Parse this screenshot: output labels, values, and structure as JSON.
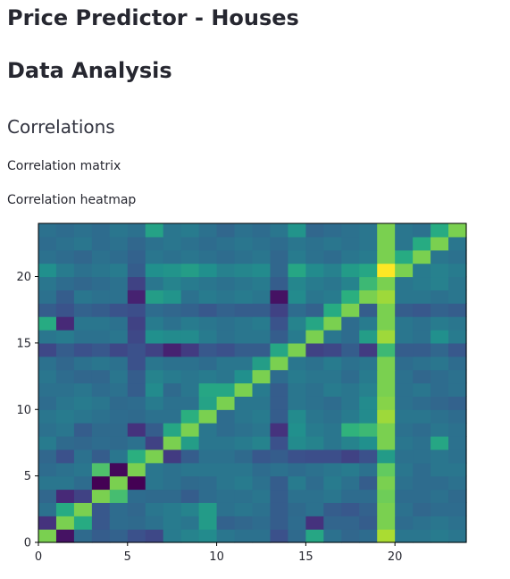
{
  "header": {
    "title": "Price Predictor - Houses"
  },
  "section": {
    "title": "Data Analysis"
  },
  "subsection": {
    "title": "Correlations"
  },
  "labels": {
    "matrix": "Correlation matrix",
    "heatmap": "Correlation heatmap"
  },
  "chart_data": {
    "type": "heatmap",
    "colormap": "viridis",
    "grid": false,
    "rows": 24,
    "cols": 24,
    "xlim": [
      0,
      24
    ],
    "ylim": [
      0,
      24
    ],
    "xticks": [
      0,
      5,
      10,
      15,
      20
    ],
    "yticks": [
      0,
      5,
      10,
      15,
      20
    ],
    "diagonal_value": 0.8,
    "values": [
      [
        0.8,
        0.05,
        0.35,
        0.3,
        0.32,
        0.25,
        0.22,
        0.42,
        0.45,
        0.48,
        0.4,
        0.38,
        0.38,
        0.25,
        0.35,
        0.6,
        0.38,
        0.34,
        0.36,
        0.88,
        0.4,
        0.4,
        0.42,
        0.4
      ],
      [
        0.15,
        0.8,
        0.62,
        0.28,
        0.36,
        0.35,
        0.38,
        0.42,
        0.4,
        0.55,
        0.32,
        0.34,
        0.36,
        0.3,
        0.36,
        0.15,
        0.33,
        0.33,
        0.3,
        0.8,
        0.36,
        0.38,
        0.4,
        0.38
      ],
      [
        0.38,
        0.62,
        0.8,
        0.28,
        0.36,
        0.34,
        0.4,
        0.42,
        0.45,
        0.55,
        0.38,
        0.4,
        0.38,
        0.3,
        0.35,
        0.38,
        0.3,
        0.28,
        0.32,
        0.8,
        0.38,
        0.34,
        0.36,
        0.36
      ],
      [
        0.34,
        0.12,
        0.2,
        0.8,
        0.7,
        0.36,
        0.35,
        0.35,
        0.3,
        0.36,
        0.38,
        0.38,
        0.4,
        0.3,
        0.38,
        0.38,
        0.4,
        0.36,
        0.36,
        0.78,
        0.36,
        0.36,
        0.38,
        0.35
      ],
      [
        0.4,
        0.4,
        0.36,
        0.0,
        0.8,
        0.0,
        0.4,
        0.38,
        0.35,
        0.36,
        0.4,
        0.42,
        0.38,
        0.3,
        0.42,
        0.36,
        0.42,
        0.38,
        0.3,
        0.8,
        0.38,
        0.36,
        0.36,
        0.38
      ],
      [
        0.36,
        0.38,
        0.4,
        0.72,
        0.02,
        0.8,
        0.4,
        0.38,
        0.4,
        0.4,
        0.4,
        0.4,
        0.36,
        0.38,
        0.36,
        0.38,
        0.4,
        0.42,
        0.38,
        0.76,
        0.4,
        0.36,
        0.4,
        0.4
      ],
      [
        0.34,
        0.25,
        0.38,
        0.3,
        0.4,
        0.64,
        0.8,
        0.18,
        0.3,
        0.38,
        0.38,
        0.35,
        0.28,
        0.3,
        0.25,
        0.24,
        0.24,
        0.2,
        0.25,
        0.55,
        0.38,
        0.38,
        0.4,
        0.38
      ],
      [
        0.42,
        0.35,
        0.34,
        0.36,
        0.35,
        0.38,
        0.2,
        0.8,
        0.56,
        0.4,
        0.4,
        0.42,
        0.45,
        0.25,
        0.48,
        0.45,
        0.4,
        0.45,
        0.5,
        0.8,
        0.4,
        0.38,
        0.6,
        0.38
      ],
      [
        0.38,
        0.4,
        0.3,
        0.35,
        0.35,
        0.15,
        0.3,
        0.6,
        0.8,
        0.4,
        0.36,
        0.38,
        0.4,
        0.15,
        0.5,
        0.42,
        0.4,
        0.65,
        0.68,
        0.8,
        0.38,
        0.36,
        0.4,
        0.38
      ],
      [
        0.4,
        0.42,
        0.4,
        0.38,
        0.36,
        0.35,
        0.38,
        0.38,
        0.64,
        0.8,
        0.36,
        0.4,
        0.42,
        0.3,
        0.48,
        0.4,
        0.38,
        0.42,
        0.48,
        0.86,
        0.4,
        0.4,
        0.38,
        0.36
      ],
      [
        0.36,
        0.4,
        0.42,
        0.4,
        0.35,
        0.36,
        0.42,
        0.38,
        0.38,
        0.58,
        0.8,
        0.4,
        0.4,
        0.3,
        0.4,
        0.38,
        0.36,
        0.4,
        0.48,
        0.82,
        0.38,
        0.36,
        0.34,
        0.32
      ],
      [
        0.38,
        0.38,
        0.4,
        0.36,
        0.38,
        0.3,
        0.48,
        0.35,
        0.4,
        0.6,
        0.6,
        0.8,
        0.42,
        0.3,
        0.4,
        0.38,
        0.42,
        0.4,
        0.44,
        0.8,
        0.38,
        0.4,
        0.36,
        0.38
      ],
      [
        0.4,
        0.36,
        0.34,
        0.34,
        0.4,
        0.3,
        0.45,
        0.42,
        0.4,
        0.42,
        0.4,
        0.5,
        0.8,
        0.36,
        0.42,
        0.4,
        0.4,
        0.36,
        0.42,
        0.8,
        0.38,
        0.34,
        0.36,
        0.38
      ],
      [
        0.38,
        0.34,
        0.38,
        0.4,
        0.38,
        0.25,
        0.4,
        0.38,
        0.38,
        0.36,
        0.4,
        0.4,
        0.56,
        0.8,
        0.4,
        0.38,
        0.42,
        0.38,
        0.4,
        0.8,
        0.36,
        0.38,
        0.4,
        0.36
      ],
      [
        0.22,
        0.3,
        0.25,
        0.28,
        0.22,
        0.25,
        0.2,
        0.1,
        0.18,
        0.28,
        0.25,
        0.3,
        0.3,
        0.6,
        0.8,
        0.2,
        0.22,
        0.3,
        0.18,
        0.68,
        0.3,
        0.3,
        0.34,
        0.28
      ],
      [
        0.4,
        0.42,
        0.38,
        0.38,
        0.4,
        0.22,
        0.5,
        0.48,
        0.48,
        0.42,
        0.38,
        0.4,
        0.4,
        0.3,
        0.42,
        0.8,
        0.4,
        0.36,
        0.56,
        0.86,
        0.4,
        0.38,
        0.5,
        0.42
      ],
      [
        0.62,
        0.12,
        0.4,
        0.4,
        0.38,
        0.2,
        0.42,
        0.38,
        0.42,
        0.4,
        0.38,
        0.4,
        0.42,
        0.26,
        0.45,
        0.6,
        0.8,
        0.36,
        0.42,
        0.8,
        0.4,
        0.38,
        0.42,
        0.4
      ],
      [
        0.3,
        0.26,
        0.32,
        0.3,
        0.26,
        0.24,
        0.36,
        0.34,
        0.32,
        0.28,
        0.32,
        0.3,
        0.3,
        0.2,
        0.36,
        0.32,
        0.62,
        0.8,
        0.3,
        0.8,
        0.3,
        0.28,
        0.32,
        0.3
      ],
      [
        0.38,
        0.3,
        0.4,
        0.38,
        0.38,
        0.1,
        0.56,
        0.52,
        0.38,
        0.42,
        0.4,
        0.42,
        0.4,
        0.05,
        0.48,
        0.4,
        0.42,
        0.64,
        0.8,
        0.86,
        0.4,
        0.4,
        0.38,
        0.4
      ],
      [
        0.4,
        0.36,
        0.34,
        0.36,
        0.38,
        0.2,
        0.4,
        0.45,
        0.42,
        0.4,
        0.38,
        0.4,
        0.42,
        0.3,
        0.46,
        0.42,
        0.4,
        0.45,
        0.68,
        0.8,
        0.4,
        0.42,
        0.44,
        0.4
      ],
      [
        0.5,
        0.42,
        0.38,
        0.4,
        0.42,
        0.3,
        0.5,
        0.52,
        0.56,
        0.5,
        0.44,
        0.46,
        0.48,
        0.34,
        0.6,
        0.48,
        0.44,
        0.55,
        0.6,
        1.0,
        0.8,
        0.42,
        0.44,
        0.42
      ],
      [
        0.38,
        0.36,
        0.34,
        0.38,
        0.36,
        0.32,
        0.4,
        0.38,
        0.4,
        0.38,
        0.36,
        0.38,
        0.4,
        0.34,
        0.42,
        0.38,
        0.36,
        0.4,
        0.42,
        0.8,
        0.62,
        0.8,
        0.4,
        0.38
      ],
      [
        0.36,
        0.38,
        0.4,
        0.36,
        0.38,
        0.34,
        0.38,
        0.4,
        0.38,
        0.36,
        0.38,
        0.4,
        0.38,
        0.36,
        0.4,
        0.38,
        0.4,
        0.38,
        0.4,
        0.8,
        0.4,
        0.62,
        0.8,
        0.4
      ],
      [
        0.38,
        0.36,
        0.38,
        0.36,
        0.4,
        0.38,
        0.58,
        0.4,
        0.42,
        0.38,
        0.34,
        0.38,
        0.36,
        0.4,
        0.52,
        0.34,
        0.36,
        0.38,
        0.4,
        0.8,
        0.4,
        0.38,
        0.62,
        0.8
      ]
    ]
  }
}
